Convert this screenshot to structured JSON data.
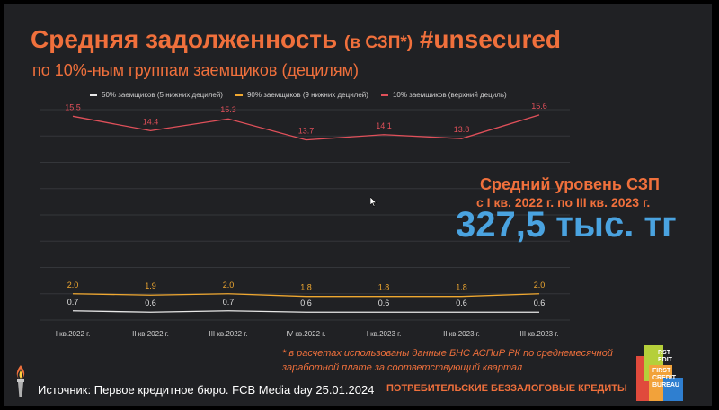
{
  "header": {
    "title_main": "Средняя задолженность",
    "title_paren": "(в СЗП*)",
    "title_tag": "#unsecured",
    "subtitle": "по 10%-ным группам заемщиков (децилям)"
  },
  "highlight": {
    "title": "Средний уровень СЗП",
    "period": "с I кв. 2022 г. по III кв. 2023 г.",
    "value": "327,5 тыс. тг"
  },
  "footnote": {
    "line1": "* в расчетах использованы данные БНС АСПиР РК по среднемесячной",
    "line2": "заработной плате за соответствующий квартал"
  },
  "footer": {
    "source": "Источник: Первое кредитное бюро. FCB Media day 25.01.2024",
    "tag": "ПОТРЕБИТЕЛЬСКИЕ БЕЗЗАЛОГОВЫЕ КРЕДИТЫ"
  },
  "logo_text": [
    "RST",
    "EDIT",
    "FIRST",
    "CREDIT",
    "BUREAU"
  ],
  "chart_data": {
    "type": "line",
    "categories": [
      "I кв.2022 г.",
      "II кв.2022 г.",
      "III кв.2022 г.",
      "IV кв.2022 г.",
      "I кв.2023 г.",
      "II кв.2023 г.",
      "III кв.2023 г."
    ],
    "series": [
      {
        "name": "50% заемщиков (5 нижних децилей)",
        "color": "#e8e8e8",
        "values": [
          0.7,
          0.6,
          0.7,
          0.6,
          0.6,
          0.6,
          0.6
        ],
        "labels": [
          "0.7",
          "0.6",
          "0.7",
          "0.6",
          "0.6",
          "0.6",
          "0.6"
        ]
      },
      {
        "name": "90% заемщиков (9 нижних децилей)",
        "color": "#f0a830",
        "values": [
          2.0,
          1.9,
          2.0,
          1.8,
          1.8,
          1.8,
          2.0
        ],
        "labels": [
          "2.0",
          "1.9",
          "2.0",
          "1.8",
          "1.8",
          "1.8",
          "2.0"
        ]
      },
      {
        "name": "10% заемщиков (верхний дециль)",
        "color": "#e0505a",
        "values": [
          15.5,
          14.4,
          15.3,
          13.7,
          14.1,
          13.8,
          15.6
        ],
        "labels": [
          "15.5",
          "14.4",
          "15.3",
          "13.7",
          "14.1",
          "13.8",
          "15.6"
        ]
      }
    ],
    "ylim": [
      0,
      16
    ],
    "grid": true,
    "legend": "top"
  }
}
